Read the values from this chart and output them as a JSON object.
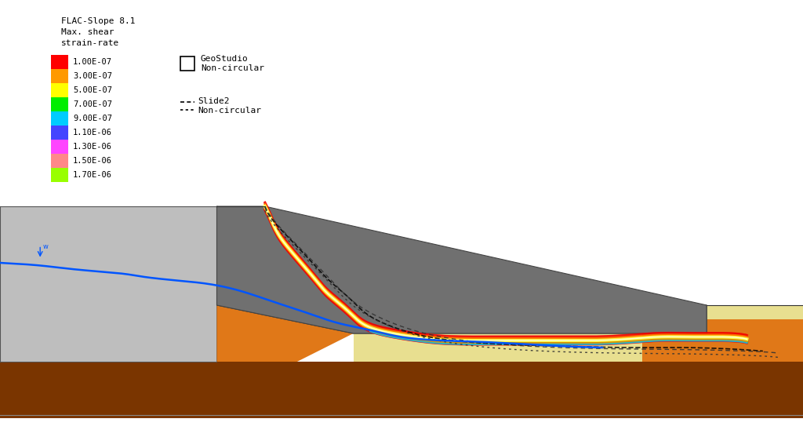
{
  "title_text": "FLAC-Slope 8.1\nMax. shear\nstrain-rate",
  "legend_labels": [
    "1.00E-07",
    "3.00E-07",
    "5.00E-07",
    "7.00E-07",
    "9.00E-07",
    "1.10E-06",
    "1.30E-06",
    "1.50E-06",
    "1.70E-06"
  ],
  "legend_colors": [
    "#FF0000",
    "#FF9900",
    "#FFFF00",
    "#00EE00",
    "#00CCFF",
    "#4444FF",
    "#FF44FF",
    "#FF8888",
    "#99FF00"
  ],
  "background_color": "#FFFFFF",
  "geostudio_label": "GeoStudio\nNon-circular",
  "slide2_label": "Slide2\nNon-circular",
  "soil_colors": {
    "light_gray": "#BEBEBE",
    "med_gray": "#909090",
    "dark_gray": "#707070",
    "orange": "#E07818",
    "dark_brown": "#7A3500",
    "yellow": "#E8DF90"
  },
  "fig_width": 10.24,
  "fig_height": 5.43,
  "dpi": 100
}
